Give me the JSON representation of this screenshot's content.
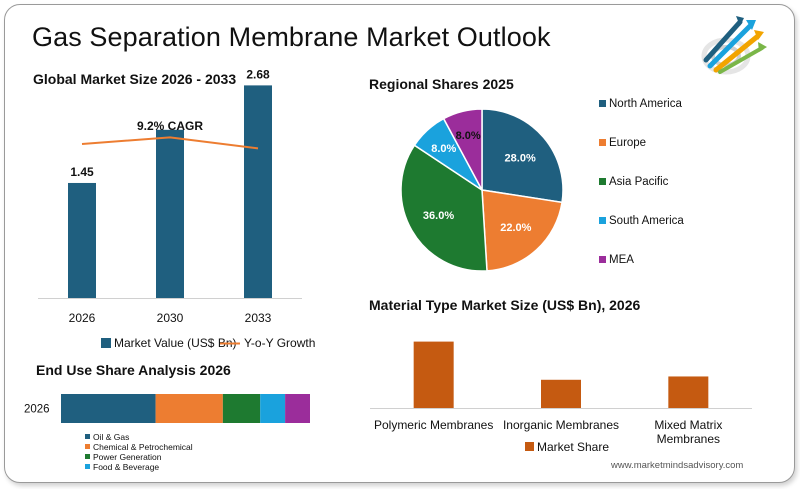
{
  "page": {
    "title": "Gas Separation Membrane Market Outlook",
    "website": "www.marketmindsadvisory.com",
    "logo_icon": "rising-arrows-logo-icon"
  },
  "colors": {
    "navy": "#1f5f7f",
    "orange": "#ed7d31",
    "green": "#1e7a30",
    "sky": "#1aa2dd",
    "purple": "#9b2d9b",
    "rust": "#c55a11",
    "growth_line": "#ed7d31"
  },
  "chart_data": [
    {
      "id": "global",
      "type": "bar",
      "title": "Global Market Size 2026 - 2033",
      "categories": [
        "2026",
        "2030",
        "2033"
      ],
      "series": [
        {
          "name": "Market Value (US$ Bn)",
          "values": [
            1.45,
            2.12,
            2.68
          ],
          "labels": [
            "1.45",
            "",
            "2.68"
          ],
          "color": "#1f5f7f"
        },
        {
          "name": "Y-o-Y Growth",
          "type": "line",
          "values": [
            0.9,
            0.93,
            0.88
          ],
          "color": "#ed7d31"
        }
      ],
      "annotation": "9.2% CAGR",
      "ylim": [
        0,
        3.0
      ],
      "legend": "bottom"
    },
    {
      "id": "regional",
      "type": "pie",
      "title": "Regional Shares 2025",
      "categories": [
        "North America",
        "Europe",
        "Asia Pacific",
        "South America",
        "MEA"
      ],
      "values": [
        28.0,
        22.0,
        36.0,
        8.0,
        8.0
      ],
      "labels": [
        "28.0%",
        "22.0%",
        "36.0%",
        "8.0%",
        "8.0%"
      ],
      "colors": [
        "#1f5f7f",
        "#ed7d31",
        "#1e7a30",
        "#1aa2dd",
        "#9b2d9b"
      ],
      "legend": "right"
    },
    {
      "id": "material",
      "type": "bar",
      "title": "Material Type Market Size (US$ Bn), 2026",
      "categories": [
        "Polymeric Membranes",
        "Inorganic Membranes",
        "Mixed Matrix Membranes"
      ],
      "category_lines": [
        [
          "Polymeric Membranes"
        ],
        [
          "Inorganic Membranes"
        ],
        [
          "Mixed Matrix",
          "Membranes"
        ]
      ],
      "series": [
        {
          "name": "Market Share",
          "values": [
            0.8,
            0.34,
            0.38
          ],
          "color": "#c55a11"
        }
      ],
      "ylim": [
        0,
        1.0
      ],
      "legend": "bottom"
    },
    {
      "id": "enduse",
      "type": "bar",
      "orientation": "horizontal-stacked",
      "title": "End Use Share Analysis 2026",
      "categories": [
        "2026"
      ],
      "series": [
        {
          "name": "Oil & Gas",
          "values": [
            38
          ],
          "color": "#1f5f7f"
        },
        {
          "name": "Chemical & Petrochemical",
          "values": [
            27
          ],
          "color": "#ed7d31"
        },
        {
          "name": "Power Generation",
          "values": [
            15
          ],
          "color": "#1e7a30"
        },
        {
          "name": "Food & Beverage",
          "values": [
            10
          ],
          "color": "#1aa2dd"
        },
        {
          "name": "",
          "values": [
            10
          ],
          "color": "#9b2d9b"
        }
      ],
      "legend": "bottom-left"
    }
  ]
}
